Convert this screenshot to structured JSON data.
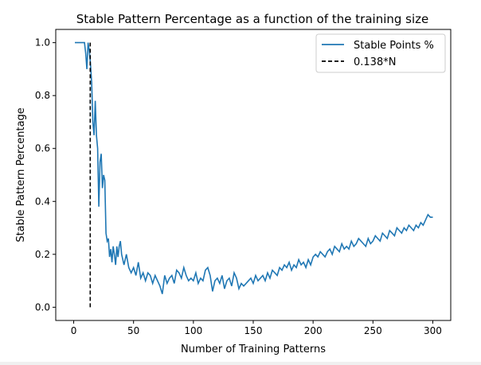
{
  "chart_data": {
    "type": "line",
    "title": "Stable Pattern Percentage as a function of the training size",
    "xlabel": "Number of Training Patterns",
    "ylabel": "Stable Pattern Percentage",
    "xlim": [
      -15,
      315
    ],
    "ylim": [
      -0.05,
      1.05
    ],
    "xticks": [
      0,
      50,
      100,
      150,
      200,
      250,
      300
    ],
    "yticks": [
      0.0,
      0.2,
      0.4,
      0.6,
      0.8,
      1.0
    ],
    "grid": false,
    "legend_position": "upper right",
    "series": [
      {
        "name": "Stable Points %",
        "color": "#1f77b4",
        "style": "solid",
        "x": [
          1,
          2,
          3,
          4,
          5,
          6,
          7,
          8,
          9,
          10,
          11,
          12,
          13,
          14,
          15,
          16,
          17,
          18,
          19,
          20,
          21,
          22,
          23,
          24,
          25,
          26,
          27,
          28,
          29,
          30,
          31,
          32,
          33,
          34,
          35,
          36,
          37,
          38,
          39,
          40,
          42,
          44,
          46,
          48,
          50,
          52,
          54,
          56,
          58,
          60,
          62,
          64,
          66,
          68,
          70,
          72,
          74,
          76,
          78,
          80,
          82,
          84,
          86,
          88,
          90,
          92,
          94,
          96,
          98,
          100,
          102,
          104,
          106,
          108,
          110,
          112,
          114,
          116,
          118,
          120,
          122,
          124,
          126,
          128,
          130,
          132,
          134,
          136,
          138,
          140,
          142,
          144,
          146,
          148,
          150,
          152,
          154,
          156,
          158,
          160,
          162,
          164,
          166,
          168,
          170,
          172,
          174,
          176,
          178,
          180,
          182,
          184,
          186,
          188,
          190,
          192,
          194,
          196,
          198,
          200,
          202,
          204,
          206,
          208,
          210,
          212,
          214,
          216,
          218,
          220,
          222,
          224,
          226,
          228,
          230,
          232,
          234,
          236,
          238,
          240,
          242,
          244,
          246,
          248,
          250,
          252,
          254,
          256,
          258,
          260,
          262,
          264,
          266,
          268,
          270,
          272,
          274,
          276,
          278,
          280,
          282,
          284,
          286,
          288,
          290,
          292,
          294,
          296,
          298,
          300
        ],
        "y": [
          1.0,
          1.0,
          1.0,
          1.0,
          1.0,
          1.0,
          1.0,
          1.0,
          1.0,
          0.96,
          0.9,
          1.0,
          0.97,
          0.92,
          0.85,
          0.7,
          0.65,
          0.78,
          0.65,
          0.6,
          0.38,
          0.55,
          0.58,
          0.45,
          0.5,
          0.48,
          0.28,
          0.25,
          0.26,
          0.19,
          0.22,
          0.17,
          0.23,
          0.2,
          0.16,
          0.23,
          0.19,
          0.23,
          0.25,
          0.2,
          0.16,
          0.2,
          0.15,
          0.13,
          0.15,
          0.12,
          0.17,
          0.11,
          0.13,
          0.1,
          0.13,
          0.12,
          0.09,
          0.12,
          0.1,
          0.08,
          0.05,
          0.12,
          0.09,
          0.11,
          0.12,
          0.09,
          0.14,
          0.13,
          0.11,
          0.15,
          0.12,
          0.1,
          0.11,
          0.1,
          0.13,
          0.09,
          0.11,
          0.1,
          0.14,
          0.15,
          0.12,
          0.06,
          0.1,
          0.11,
          0.09,
          0.12,
          0.07,
          0.1,
          0.11,
          0.08,
          0.13,
          0.11,
          0.07,
          0.09,
          0.08,
          0.09,
          0.1,
          0.11,
          0.09,
          0.12,
          0.1,
          0.11,
          0.12,
          0.1,
          0.13,
          0.11,
          0.14,
          0.13,
          0.12,
          0.15,
          0.14,
          0.16,
          0.15,
          0.17,
          0.14,
          0.16,
          0.15,
          0.18,
          0.16,
          0.17,
          0.15,
          0.18,
          0.16,
          0.19,
          0.2,
          0.19,
          0.21,
          0.2,
          0.19,
          0.21,
          0.22,
          0.2,
          0.23,
          0.22,
          0.21,
          0.24,
          0.22,
          0.23,
          0.22,
          0.25,
          0.23,
          0.24,
          0.26,
          0.25,
          0.24,
          0.23,
          0.26,
          0.24,
          0.25,
          0.27,
          0.26,
          0.25,
          0.28,
          0.27,
          0.26,
          0.29,
          0.28,
          0.27,
          0.3,
          0.29,
          0.28,
          0.3,
          0.29,
          0.31,
          0.3,
          0.29,
          0.31,
          0.3,
          0.32,
          0.31,
          0.33,
          0.35,
          0.34,
          0.34
        ]
      },
      {
        "name": "0.138*N",
        "color": "#000000",
        "style": "dashed",
        "x": [
          13.8,
          13.8
        ],
        "y": [
          0.0,
          1.0
        ]
      }
    ]
  }
}
